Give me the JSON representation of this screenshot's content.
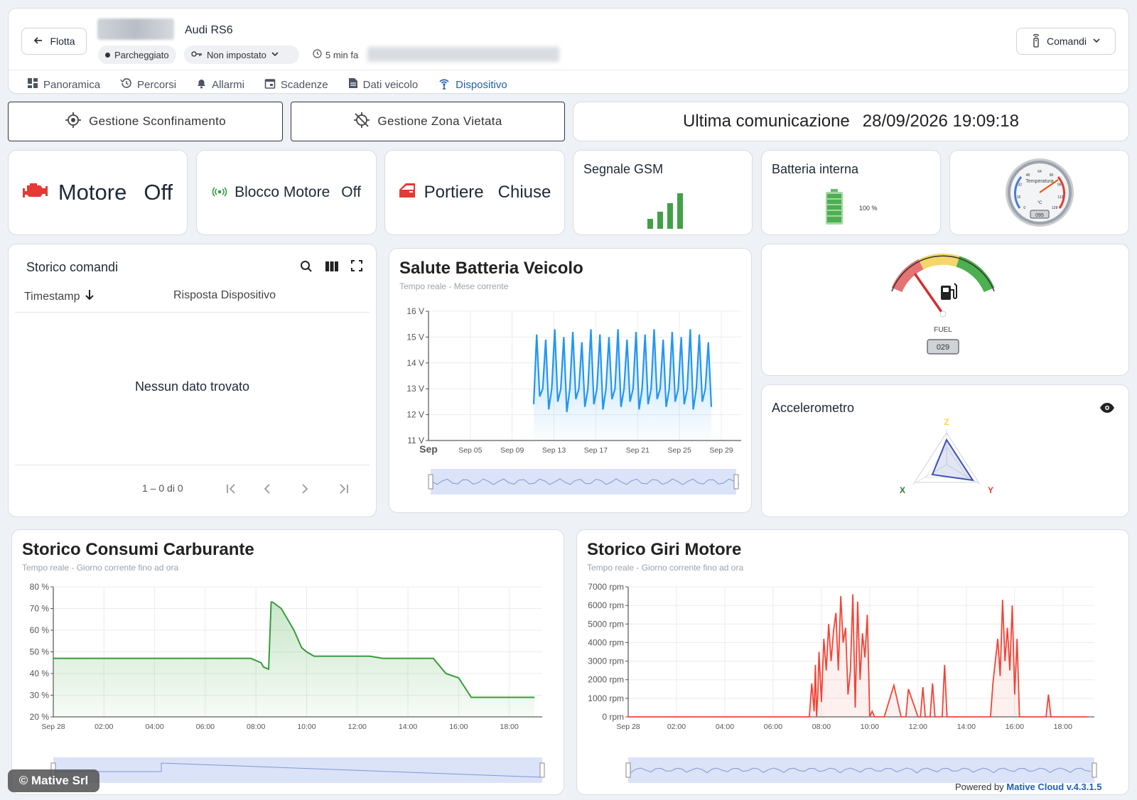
{
  "header": {
    "back_label": "Flotta",
    "vehicle_name": "Audi RS6",
    "status_chip": "Parcheggiato",
    "driver_chip": "Non impostato",
    "time_ago": "5 min fa",
    "commands_label": "Comandi"
  },
  "tabs": [
    {
      "label": "Panoramica",
      "icon": "dashboard-icon"
    },
    {
      "label": "Percorsi",
      "icon": "history-icon"
    },
    {
      "label": "Allarmi",
      "icon": "bell-icon"
    },
    {
      "label": "Scadenze",
      "icon": "calendar-icon"
    },
    {
      "label": "Dati veicolo",
      "icon": "document-icon"
    },
    {
      "label": "Dispositivo",
      "icon": "antenna-icon",
      "active": true
    }
  ],
  "actions": {
    "geofence_label": "Gestione Sconfinamento",
    "forbidden_zone_label": "Gestione Zona Vietata",
    "last_comm_label": "Ultima comunicazione",
    "last_comm_value": "28/09/2026 19:09:18"
  },
  "status": {
    "engine_label": "Motore",
    "engine_value": "Off",
    "block_label": "Blocco Motore",
    "block_value": "Off",
    "doors_label": "Portiere",
    "doors_value": "Chiuse",
    "gsm_title": "Segnale GSM",
    "gsm_bars": 4,
    "battery_title": "Batteria interna",
    "battery_pct": "100 %",
    "temp_gauge_label": "Temperatura",
    "temp_unit": "°C",
    "temp_value": "095",
    "temp_ticks": [
      "0",
      "16",
      "32",
      "48",
      "64",
      "80",
      "96",
      "112",
      "128"
    ]
  },
  "history": {
    "title": "Storico comandi",
    "col_timestamp": "Timestamp",
    "col_response": "Risposta Dispositivo",
    "empty": "Nessun dato trovato",
    "pagination": "1 – 0 di 0"
  },
  "fuel_gauge": {
    "label": "FUEL",
    "value": "029",
    "level_pct": 29
  },
  "accelerometer": {
    "title": "Accelerometro",
    "axes": [
      "Z",
      "X",
      "Y"
    ]
  },
  "colors": {
    "accent": "#1f5fb0",
    "battery": "#2196f3",
    "fuel": "#3a9a3a",
    "rpm": "#f44336"
  },
  "chart_data": [
    {
      "type": "line",
      "title": "Salute Batteria Veicolo",
      "subtitle": "Tempo reale - Mese corrente",
      "x_ticks": [
        "Sep",
        "Sep 05",
        "Sep 09",
        "Sep 13",
        "Sep 17",
        "Sep 21",
        "Sep 25",
        "Sep 29"
      ],
      "y_ticks": [
        "11 V",
        "12 V",
        "13 V",
        "14 V",
        "15 V",
        "16 V"
      ],
      "ylim": [
        11,
        16
      ],
      "series": [
        {
          "values": [
            12.4,
            15.1,
            12.7,
            13.0,
            14.9,
            12.2,
            13.0,
            15.3,
            12.5,
            13.0,
            15.0,
            12.1,
            13.0,
            15.2,
            12.6,
            13.0,
            14.8,
            12.3,
            13.0,
            15.3,
            12.4,
            13.0,
            15.1,
            12.2,
            13.0,
            15.0,
            12.6,
            13.0,
            15.3,
            12.3,
            13.0,
            14.9,
            12.5,
            13.0,
            15.2,
            12.2,
            13.0,
            15.1,
            12.4,
            13.0,
            15.3,
            12.6,
            13.0,
            14.9,
            12.3,
            13.0,
            15.2,
            12.5,
            13.0,
            15.0,
            12.4,
            13.0,
            15.3,
            12.2,
            13.0,
            15.1,
            12.5,
            13.0,
            14.8,
            12.3
          ]
        }
      ]
    },
    {
      "type": "area",
      "title": "Storico Consumi Carburante",
      "subtitle": "Tempo reale - Giorno corrente fino ad ora",
      "x_ticks": [
        "Sep 28",
        "02:00",
        "04:00",
        "06:00",
        "08:00",
        "10:00",
        "12:00",
        "14:00",
        "16:00",
        "18:00"
      ],
      "y_ticks": [
        "20 %",
        "30 %",
        "40 %",
        "50 %",
        "60 %",
        "70 %",
        "80 %"
      ],
      "ylim": [
        20,
        80
      ],
      "x_hours": [
        0,
        7.8,
        8.2,
        8.3,
        8.5,
        8.6,
        8.65,
        9.0,
        9.5,
        9.8,
        10.0,
        10.3,
        12.5,
        13.0,
        15.0,
        15.5,
        16.0,
        16.5,
        19.0
      ],
      "values": [
        47,
        47,
        45,
        43,
        42,
        73,
        73,
        70,
        60,
        52,
        50,
        48,
        48,
        47,
        47,
        40,
        38,
        29,
        29
      ]
    },
    {
      "type": "line",
      "title": "Storico Giri Motore",
      "subtitle": "Tempo reale - Giorno corrente fino ad ora",
      "x_ticks": [
        "Sep 28",
        "02:00",
        "04:00",
        "06:00",
        "08:00",
        "10:00",
        "12:00",
        "14:00",
        "16:00",
        "18:00"
      ],
      "y_ticks": [
        "0 rpm",
        "1000 rpm",
        "2000 rpm",
        "3000 rpm",
        "4000 rpm",
        "5000 rpm",
        "6000 rpm",
        "7000 rpm"
      ],
      "ylim": [
        0,
        7000
      ],
      "x_hours": [
        0,
        7.5,
        7.6,
        7.7,
        7.75,
        7.8,
        7.85,
        7.9,
        8.0,
        8.1,
        8.2,
        8.3,
        8.4,
        8.5,
        8.6,
        8.7,
        8.8,
        8.9,
        9.0,
        9.1,
        9.2,
        9.3,
        9.4,
        9.5,
        9.6,
        9.7,
        9.8,
        9.9,
        10.0,
        10.1,
        10.2,
        10.3,
        10.4,
        10.6,
        11.0,
        11.3,
        11.5,
        11.6,
        12.0,
        12.1,
        12.2,
        12.3,
        12.5,
        12.6,
        12.7,
        13.0,
        13.1,
        13.2,
        13.3,
        15.0,
        15.1,
        15.2,
        15.3,
        15.4,
        15.5,
        15.6,
        15.7,
        15.8,
        15.9,
        16.0,
        16.1,
        16.2,
        16.3,
        16.4,
        17.3,
        17.4,
        17.5,
        19.0
      ],
      "values": [
        0,
        0,
        1800,
        300,
        2800,
        0,
        1200,
        3500,
        800,
        4200,
        2500,
        5000,
        3000,
        4600,
        5600,
        2500,
        6500,
        4000,
        4800,
        1200,
        2500,
        6600,
        500,
        6200,
        2000,
        4500,
        3200,
        5500,
        0,
        300,
        0,
        0,
        0,
        0,
        1700,
        0,
        0,
        1500,
        0,
        0,
        1600,
        0,
        0,
        1800,
        0,
        0,
        2800,
        0,
        0,
        0,
        1800,
        3000,
        4200,
        2200,
        6300,
        3000,
        4800,
        2500,
        6000,
        1200,
        4200,
        0,
        0,
        0,
        0,
        1200,
        0,
        0
      ]
    }
  ],
  "footer": {
    "watermark": "© Mative Srl",
    "powered_by": "Powered by",
    "brand": "Mative Cloud v.4.3.1.5"
  }
}
